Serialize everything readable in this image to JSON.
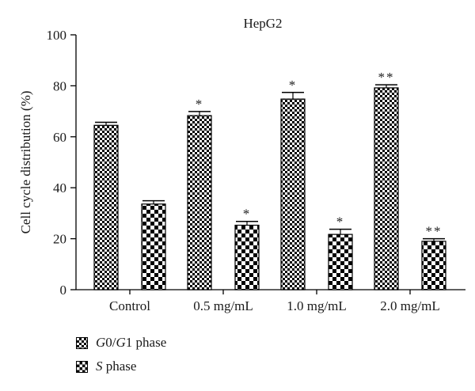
{
  "chart_data": {
    "type": "bar",
    "title": "HepG2",
    "ylabel": "Cell cycle distribution (%)",
    "xlabel": "",
    "ylim": [
      0,
      100
    ],
    "yticks": [
      0,
      20,
      40,
      60,
      80,
      100
    ],
    "categories": [
      "Control",
      "0.5 mg/mL",
      "1.0 mg/mL",
      "2.0 mg/mL"
    ],
    "series": [
      {
        "name": "G0/G1 phase",
        "pattern": "fine-checker",
        "values": [
          64.5,
          68.3,
          74.8,
          79.2
        ],
        "errors": [
          1.2,
          1.6,
          2.6,
          1.2
        ],
        "annotations": [
          "",
          "*",
          "*",
          "**"
        ]
      },
      {
        "name": "S phase",
        "pattern": "coarse-checker",
        "values": [
          33.6,
          25.3,
          21.7,
          19.0
        ],
        "errors": [
          1.3,
          1.5,
          2.0,
          1.0
        ],
        "annotations": [
          "",
          "*",
          "*",
          "**"
        ]
      }
    ],
    "grid": false,
    "legend_position": "bottom-left",
    "colors": {
      "ink": "#000000",
      "background": "#ffffff"
    }
  },
  "legend": {
    "g0g1_italic_a": "G",
    "g0g1_plain_a": "0/",
    "g0g1_italic_b": "G",
    "g0g1_plain_b": "1 phase",
    "s_italic": "S",
    "s_plain": " phase"
  }
}
